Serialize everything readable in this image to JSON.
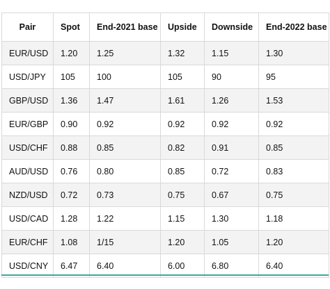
{
  "table": {
    "headers": [
      "Pair",
      "Spot",
      "End-2021 base",
      "Upside",
      "Downside",
      "End-2022 base"
    ],
    "rows": [
      [
        "EUR/USD",
        "1.20",
        "1.25",
        "1.32",
        "1.15",
        "1.30"
      ],
      [
        "USD/JPY",
        "105",
        "100",
        "105",
        "90",
        "95"
      ],
      [
        "GBP/USD",
        "1.36",
        "1.47",
        "1.61",
        "1.26",
        "1.53"
      ],
      [
        "EUR/GBP",
        "0.90",
        "0.92",
        "0.92",
        "0.92",
        "0.92"
      ],
      [
        "USD/CHF",
        "0.88",
        "0.85",
        "0.82",
        "0.91",
        "0.85"
      ],
      [
        "AUD/USD",
        "0.76",
        "0.80",
        "0.85",
        "0.72",
        "0.83"
      ],
      [
        "NZD/USD",
        "0.72",
        "0.73",
        "0.75",
        "0.67",
        "0.75"
      ],
      [
        "USD/CAD",
        "1.28",
        "1.22",
        "1.15",
        "1.30",
        "1.18"
      ],
      [
        "EUR/CHF",
        "1.08",
        "1/15",
        "1.20",
        "1.05",
        "1.20"
      ],
      [
        "USD/CNY",
        "6.47",
        "6.40",
        "6.00",
        "6.80",
        "6.40"
      ]
    ]
  },
  "colors": {
    "row_shade": "#f3f3f3",
    "grid_line": "#d9d9d9",
    "accent_rule": "#3aa7a0"
  }
}
